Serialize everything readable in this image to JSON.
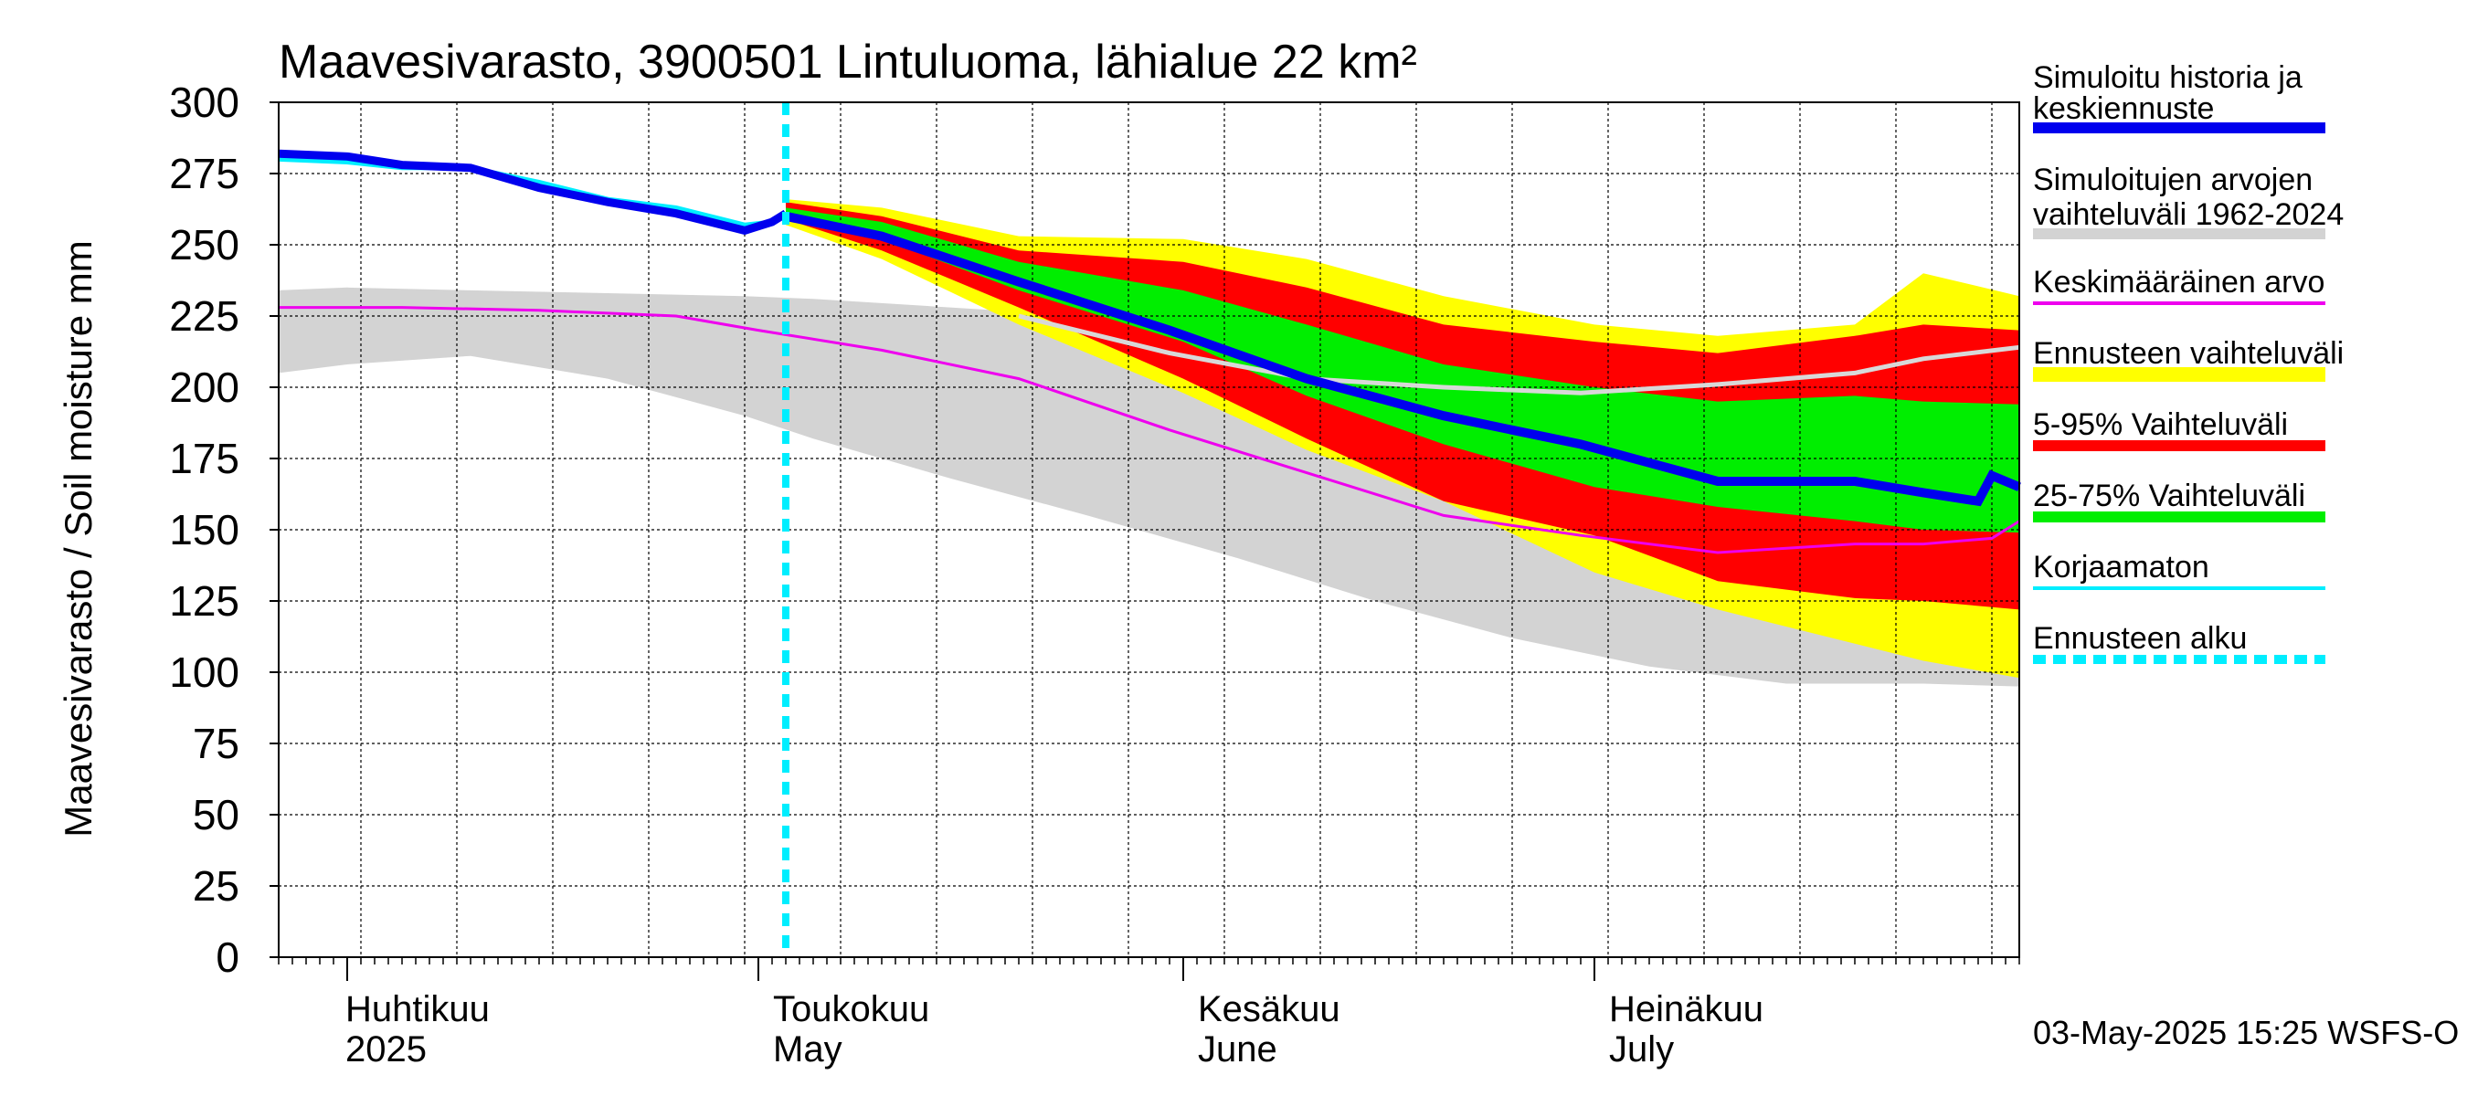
{
  "chart_data": {
    "type": "area",
    "title": "Maavesivarasto, 3900501 Lintuluoma, lähialue 22 km²",
    "ylabel": "Maavesivarasto / Soil moisture   mm",
    "ylim": [
      0,
      300
    ],
    "yticks": [
      0,
      25,
      50,
      75,
      100,
      125,
      150,
      175,
      200,
      225,
      250,
      275,
      300
    ],
    "x_start": "2025-03-27",
    "x_end": "2025-08-01",
    "forecast_start": "2025-05-03",
    "months": [
      {
        "fi": "Huhtikuu",
        "en": "2025",
        "date": "2025-04-01"
      },
      {
        "fi": "Toukokuu",
        "en": "May",
        "date": "2025-05-01"
      },
      {
        "fi": "Kesäkuu",
        "en": "June",
        "date": "2025-06-01"
      },
      {
        "fi": "Heinäkuu",
        "en": "July",
        "date": "2025-07-01"
      }
    ],
    "footer": "03-May-2025 15:25 WSFS-O",
    "legend": [
      {
        "label": "Simuloitu historia ja keskiennuste",
        "color": "#0000ee"
      },
      {
        "label": "Simuloitujen arvojen vaihteluväli 1962-2024",
        "color": "#d3d3d3"
      },
      {
        "label": "Keskimääräinen arvo",
        "color": "#ee00ee"
      },
      {
        "label": "Ennusteen vaihteluväli",
        "color": "#ffff00"
      },
      {
        "label": "5-95% Vaihteluväli",
        "color": "#ff0000"
      },
      {
        "label": "25-75% Vaihteluväli",
        "color": "#00ee00"
      },
      {
        "label": "Korjaamaton",
        "color": "#00eeff"
      },
      {
        "label": "Ennusteen alku",
        "color": "#00eeff"
      }
    ],
    "series": {
      "historical_range": {
        "x": [
          "2025-03-27",
          "2025-04-01",
          "2025-04-10",
          "2025-04-20",
          "2025-04-30",
          "2025-05-05",
          "2025-05-15",
          "2025-05-25",
          "2025-06-05",
          "2025-06-15",
          "2025-06-25",
          "2025-07-05",
          "2025-07-15",
          "2025-07-25",
          "2025-08-01"
        ],
        "upper": [
          234,
          235,
          234,
          233,
          232,
          231,
          228,
          225,
          220,
          215,
          212,
          210,
          210,
          212,
          214
        ],
        "lower": [
          205,
          208,
          211,
          203,
          190,
          182,
          168,
          155,
          140,
          125,
          112,
          102,
          96,
          96,
          95
        ]
      },
      "forecast_range": {
        "x": [
          "2025-05-03",
          "2025-05-10",
          "2025-05-20",
          "2025-06-01",
          "2025-06-10",
          "2025-06-20",
          "2025-07-01",
          "2025-07-10",
          "2025-07-20",
          "2025-07-25",
          "2025-08-01"
        ],
        "upper": [
          266,
          263,
          253,
          252,
          245,
          232,
          222,
          218,
          222,
          240,
          232
        ],
        "lower": [
          257,
          245,
          222,
          198,
          178,
          160,
          135,
          122,
          110,
          104,
          98
        ]
      },
      "p5_95": {
        "x": [
          "2025-05-03",
          "2025-05-10",
          "2025-05-20",
          "2025-06-01",
          "2025-06-10",
          "2025-06-20",
          "2025-07-01",
          "2025-07-10",
          "2025-07-20",
          "2025-07-25",
          "2025-08-01"
        ],
        "upper": [
          265,
          260,
          248,
          244,
          235,
          222,
          216,
          212,
          218,
          222,
          220
        ],
        "lower": [
          259,
          248,
          228,
          203,
          182,
          160,
          148,
          132,
          126,
          125,
          122
        ]
      },
      "p25_75": {
        "x": [
          "2025-05-03",
          "2025-05-10",
          "2025-05-20",
          "2025-06-01",
          "2025-06-10",
          "2025-06-20",
          "2025-07-01",
          "2025-07-10",
          "2025-07-20",
          "2025-07-25",
          "2025-08-01"
        ],
        "upper": [
          263,
          258,
          244,
          234,
          222,
          208,
          200,
          195,
          197,
          195,
          194
        ],
        "lower": [
          260,
          252,
          234,
          216,
          197,
          180,
          165,
          158,
          153,
          150,
          149
        ]
      },
      "mean_value": {
        "x": [
          "2025-03-27",
          "2025-04-05",
          "2025-04-15",
          "2025-04-25",
          "2025-05-01",
          "2025-05-10",
          "2025-05-20",
          "2025-05-31",
          "2025-06-10",
          "2025-06-20",
          "2025-06-30",
          "2025-07-10",
          "2025-07-20",
          "2025-07-25",
          "2025-07-30",
          "2025-08-01"
        ],
        "values": [
          228,
          228,
          227,
          225,
          220,
          213,
          203,
          185,
          170,
          155,
          148,
          142,
          145,
          145,
          147,
          153
        ]
      },
      "forecast_median": {
        "x": [
          "2025-05-03",
          "2025-05-10",
          "2025-05-20",
          "2025-05-31",
          "2025-06-10",
          "2025-06-20",
          "2025-06-30",
          "2025-07-10",
          "2025-07-20",
          "2025-07-25",
          "2025-07-29",
          "2025-07-30",
          "2025-08-01"
        ],
        "values": [
          260,
          253,
          237,
          220,
          203,
          190,
          180,
          167,
          167,
          163,
          160,
          169,
          165
        ]
      },
      "climate_mean_gray": {
        "x": [
          "2025-05-20",
          "2025-05-31",
          "2025-06-10",
          "2025-06-20",
          "2025-06-30",
          "2025-07-10",
          "2025-07-20",
          "2025-07-25",
          "2025-08-01"
        ],
        "values": [
          225,
          212,
          203,
          200,
          198,
          201,
          205,
          210,
          214
        ]
      },
      "simulated_history": {
        "x": [
          "2025-03-27",
          "2025-04-01",
          "2025-04-05",
          "2025-04-10",
          "2025-04-15",
          "2025-04-20",
          "2025-04-25",
          "2025-04-30",
          "2025-05-02",
          "2025-05-03"
        ],
        "values": [
          282,
          281,
          278,
          277,
          270,
          265,
          261,
          255,
          258,
          261
        ]
      },
      "uncorrected": {
        "x": [
          "2025-03-27",
          "2025-04-01",
          "2025-04-05",
          "2025-04-10",
          "2025-04-15",
          "2025-04-20",
          "2025-04-25",
          "2025-04-30",
          "2025-05-02",
          "2025-05-03"
        ],
        "values": [
          280,
          279,
          277,
          277,
          272,
          266,
          263,
          257,
          258,
          261
        ]
      }
    }
  }
}
